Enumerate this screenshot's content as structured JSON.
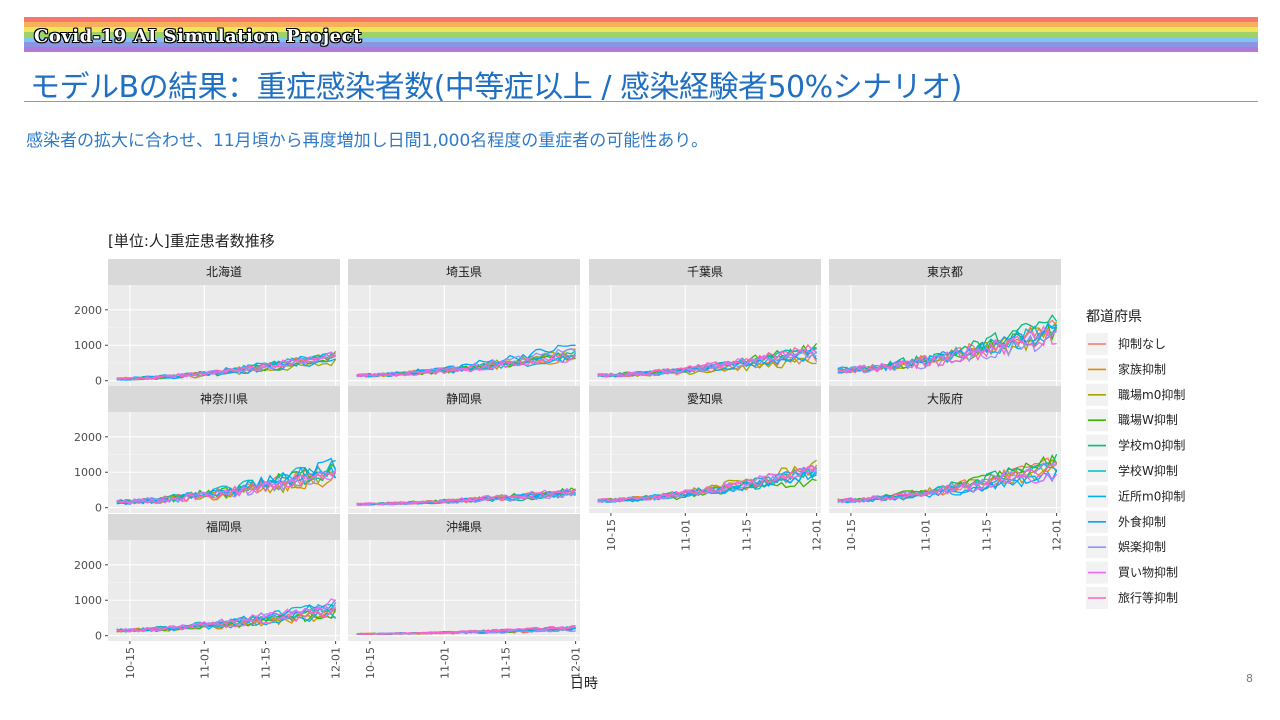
{
  "header": {
    "project_title": "Covid-19 AI Simulation Project",
    "slide_title": "モデルBの結果：重症感染者数(中等症以上 / 感染経験者50%シナリオ)",
    "subtitle": "感染者の拡大に合わせ、11月頃から再度増加し日間1,000名程度の重症者の可能性あり。",
    "page_number": "8"
  },
  "colors": {
    "title": "#1f6fc2",
    "rainbow": [
      "#f8766d",
      "#f5b25a",
      "#f1e55a",
      "#9fd36a",
      "#7cc6f0",
      "#8f94e2",
      "#b07ad8"
    ]
  },
  "chart_data": {
    "type": "line",
    "title": "[単位:人]重症患者数推移",
    "xlabel": "日時",
    "ylabel": "",
    "x_ticks": [
      "10-15",
      "11-01",
      "11-15",
      "12-01"
    ],
    "x_range": [
      "10-10",
      "12-02"
    ],
    "y_ticks": [
      0,
      1000,
      2000
    ],
    "ylim": [
      -150,
      2700
    ],
    "grid": true,
    "legend_title": "都道府県",
    "legend_position": "right",
    "series": [
      {
        "name": "抑制なし",
        "color": "#F8766D"
      },
      {
        "name": "家族抑制",
        "color": "#D89000"
      },
      {
        "name": "職場m0抑制",
        "color": "#A3A500"
      },
      {
        "name": "職場W抑制",
        "color": "#39B600"
      },
      {
        "name": "学校m0抑制",
        "color": "#00BF7D"
      },
      {
        "name": "学校W抑制",
        "color": "#00BFC4"
      },
      {
        "name": "近所m0抑制",
        "color": "#00B0F6"
      },
      {
        "name": "外食抑制",
        "color": "#00A5FF"
      },
      {
        "name": "娯楽抑制",
        "color": "#9590FF"
      },
      {
        "name": "買い物抑制",
        "color": "#E76BF3"
      },
      {
        "name": "旅行等抑制",
        "color": "#FF62BC"
      }
    ],
    "panels": [
      {
        "name": "北海道",
        "start": 50,
        "end": 650,
        "noise": 120
      },
      {
        "name": "埼玉県",
        "start": 150,
        "end": 800,
        "noise": 140
      },
      {
        "name": "千葉県",
        "start": 150,
        "end": 750,
        "noise": 150
      },
      {
        "name": "東京都",
        "start": 300,
        "end": 1400,
        "noise": 280
      },
      {
        "name": "神奈川県",
        "start": 150,
        "end": 1050,
        "noise": 220
      },
      {
        "name": "静岡県",
        "start": 100,
        "end": 450,
        "noise": 90
      },
      {
        "name": "愛知県",
        "start": 200,
        "end": 1000,
        "noise": 170
      },
      {
        "name": "大阪府",
        "start": 200,
        "end": 1100,
        "noise": 190
      },
      {
        "name": "福岡県",
        "start": 150,
        "end": 750,
        "noise": 150
      },
      {
        "name": "沖縄県",
        "start": 50,
        "end": 200,
        "noise": 50
      }
    ]
  }
}
